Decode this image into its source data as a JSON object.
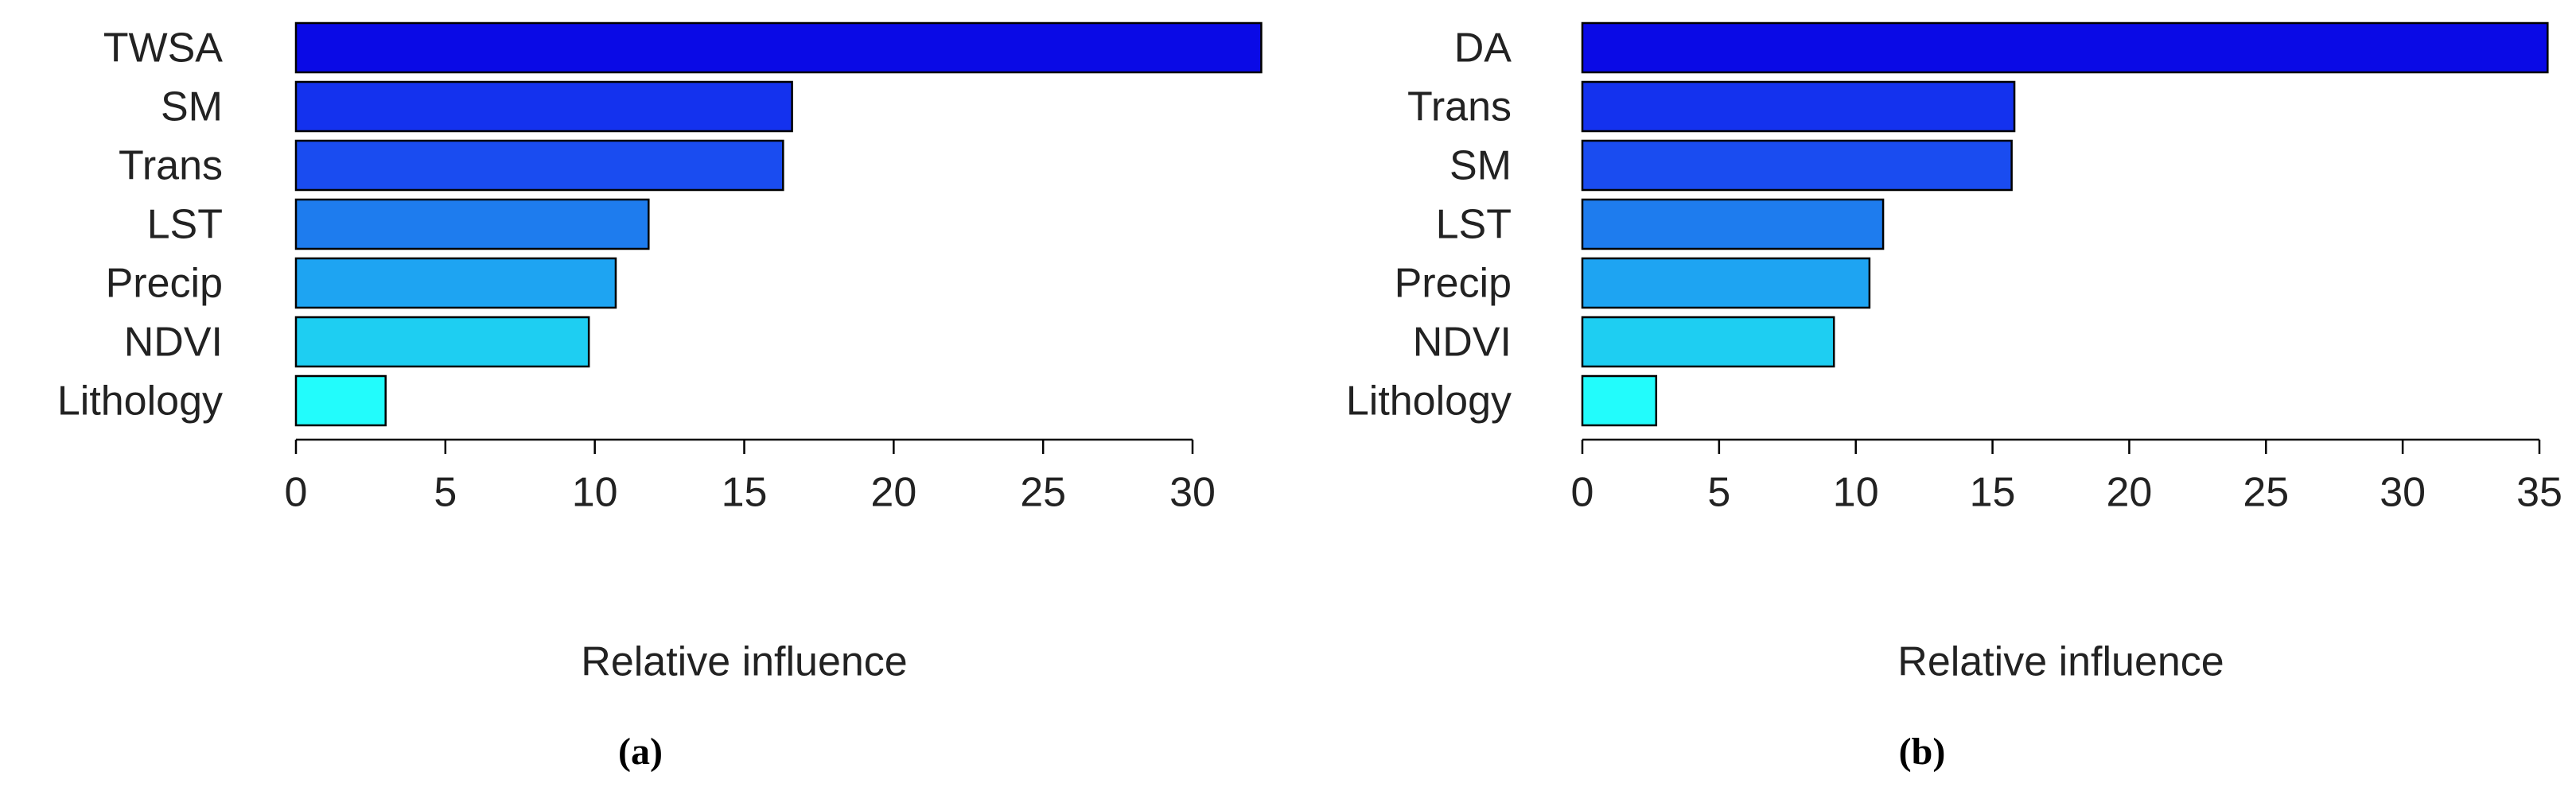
{
  "chart_data": [
    {
      "type": "bar",
      "orientation": "horizontal",
      "caption": "(a)",
      "xlabel": "Relative influence",
      "categories": [
        "TWSA",
        "SM",
        "Trans",
        "LST",
        "Precip",
        "NDVI",
        "Lithology"
      ],
      "values": [
        32.3,
        16.6,
        16.3,
        11.8,
        10.7,
        9.8,
        3.0
      ],
      "colors": [
        "#0a0ae6",
        "#1432ee",
        "#1a4cf0",
        "#1e7cee",
        "#1ea4f2",
        "#1ecef2",
        "#22fcfc"
      ],
      "xlim": [
        0,
        30
      ],
      "xticks": [
        0,
        5,
        10,
        15,
        20,
        25,
        30
      ]
    },
    {
      "type": "bar",
      "orientation": "horizontal",
      "caption": "(b)",
      "xlabel": "Relative influence",
      "categories": [
        "DA",
        "Trans",
        "SM",
        "LST",
        "Precip",
        "NDVI",
        "Lithology"
      ],
      "values": [
        35.3,
        15.8,
        15.7,
        11.0,
        10.5,
        9.2,
        2.7
      ],
      "colors": [
        "#0a0ae6",
        "#1432ee",
        "#1a4cf0",
        "#1e7cee",
        "#1ea4f2",
        "#1ecef2",
        "#22fcfc"
      ],
      "xlim": [
        0,
        35
      ],
      "xticks": [
        0,
        5,
        10,
        15,
        20,
        25,
        30,
        35
      ]
    }
  ]
}
